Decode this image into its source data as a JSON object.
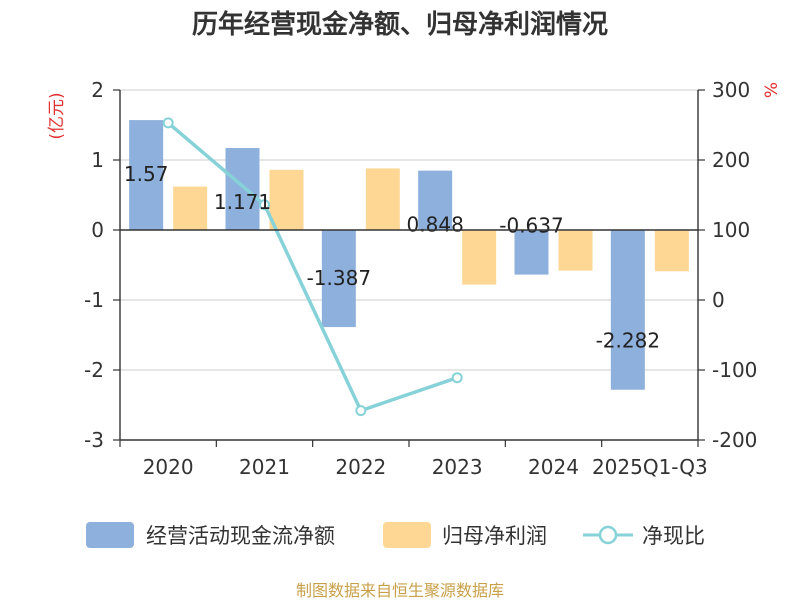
{
  "chart_data": {
    "type": "bar",
    "title": "历年经营现金净额、归母净利润情况",
    "categories": [
      "2020",
      "2021",
      "2022",
      "2023",
      "2024",
      "2025Q1-Q3"
    ],
    "series": [
      {
        "name": "经营活动现金流净额",
        "values": [
          1.57,
          1.171,
          -1.387,
          0.848,
          -0.637,
          -2.282
        ],
        "color": "#8eb0dc",
        "axis": "left",
        "labels": [
          "1.57",
          "1.171",
          "-1.387",
          "0.848",
          "-0.637",
          "-2.282"
        ]
      },
      {
        "name": "归母净利润",
        "values": [
          0.62,
          0.86,
          0.88,
          -0.78,
          -0.58,
          -0.59
        ],
        "color": "#fed795",
        "axis": "left"
      },
      {
        "name": "净现比",
        "type": "line",
        "values": [
          253,
          136,
          -158,
          -111,
          null,
          null
        ],
        "color": "#86d2d8",
        "axis": "right"
      }
    ],
    "y_left": {
      "label": "(亿元)",
      "ylim": [
        -3,
        2
      ],
      "ticks": [
        "2",
        "1",
        "0",
        "-1",
        "-2",
        "-3"
      ]
    },
    "y_right": {
      "label": "%",
      "ylim": [
        -200,
        300
      ],
      "ticks": [
        "300",
        "200",
        "100",
        "0",
        "-100",
        "-200"
      ]
    },
    "grid": true,
    "legend_position": "bottom"
  },
  "source": "制图数据来自恒生聚源数据库",
  "colors": {
    "axis_label": "#e03030",
    "source": "#c8a04a"
  }
}
